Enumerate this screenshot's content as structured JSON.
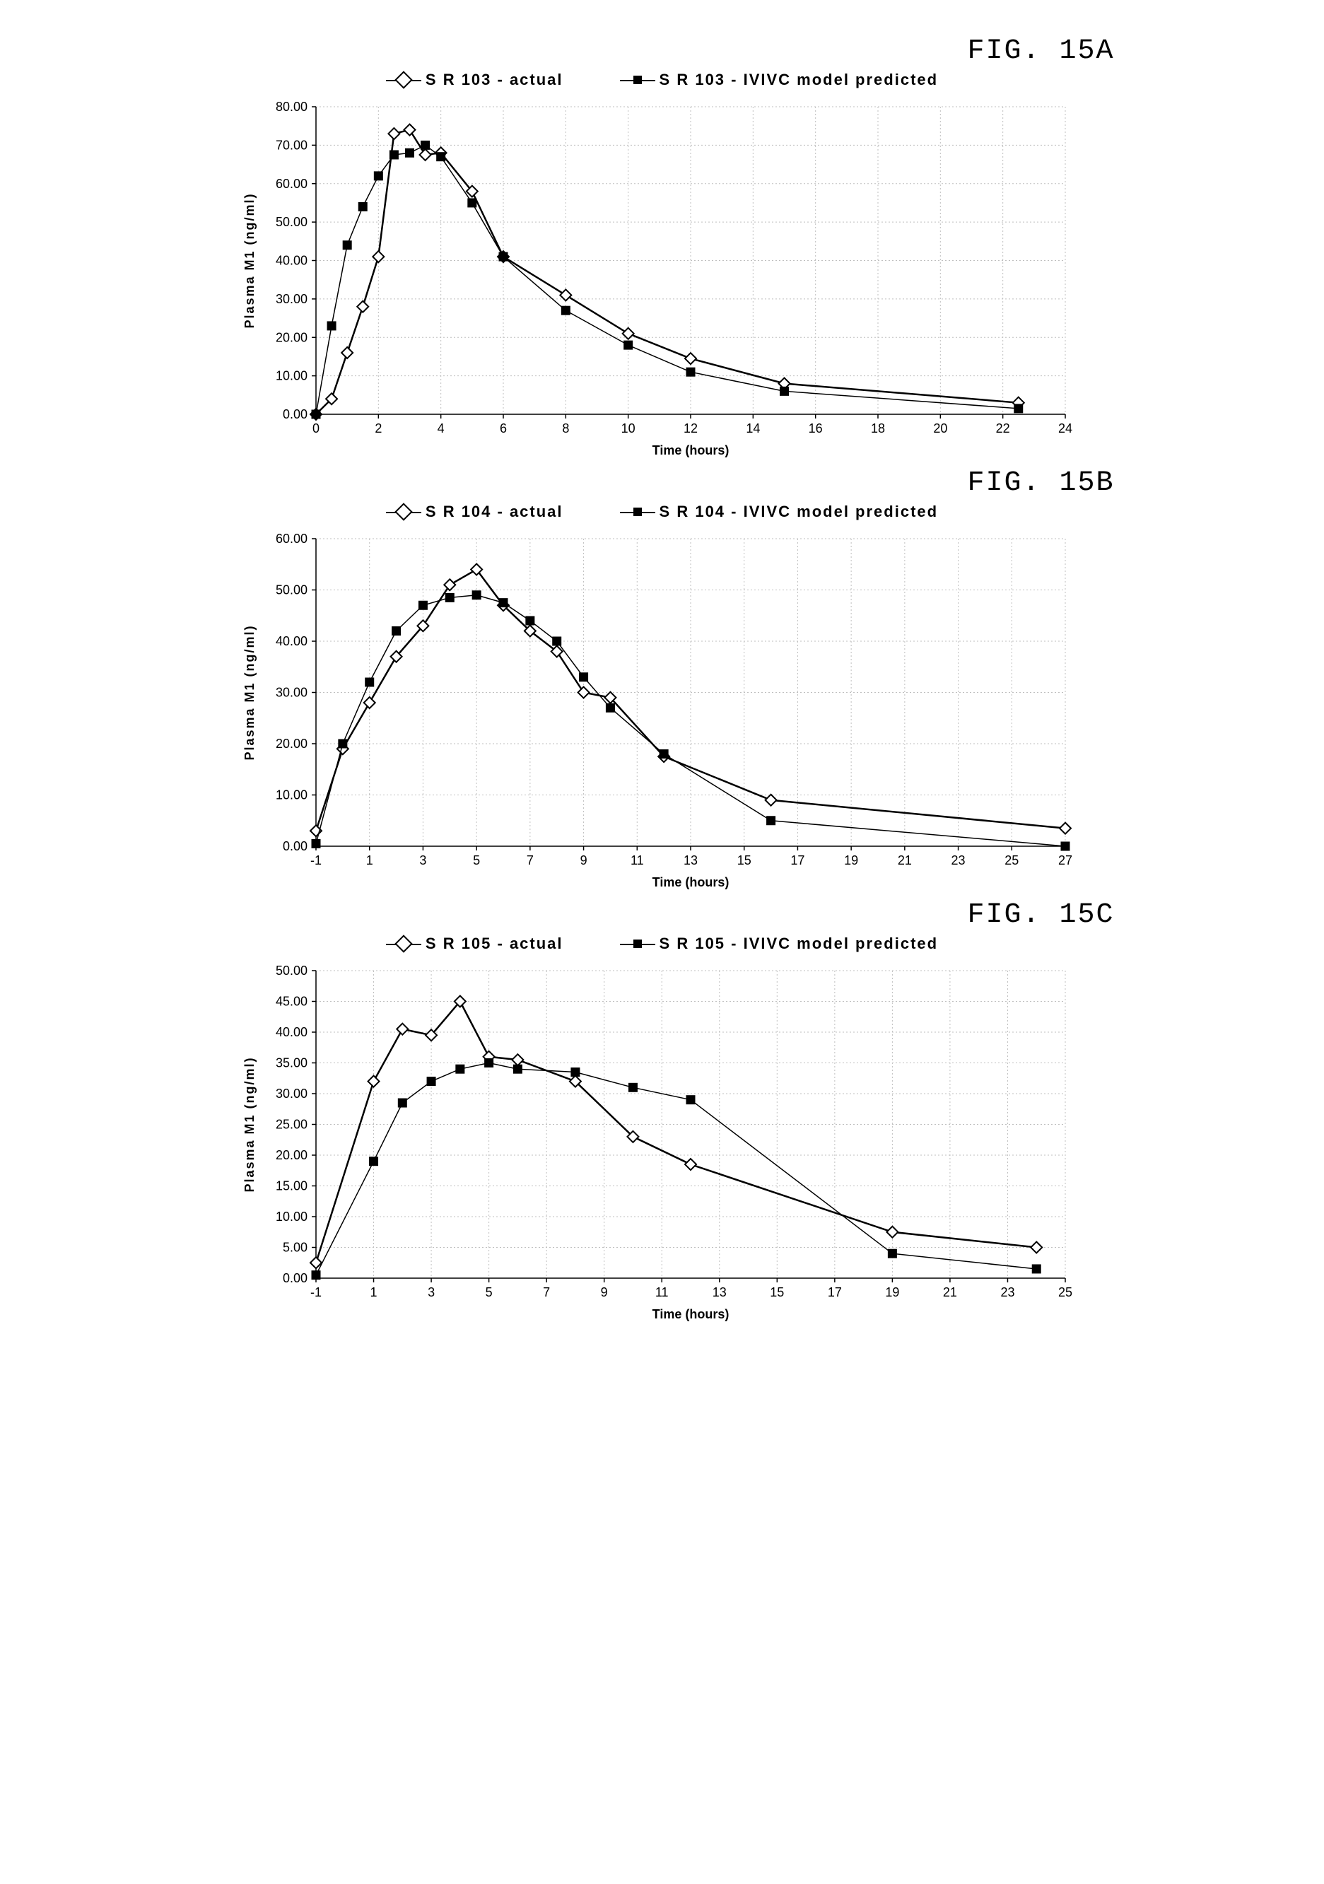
{
  "figures": [
    {
      "title": "FIG. 15A",
      "legend": {
        "actual": "S R 103 - actual",
        "predicted": "S R 103 - IVIVC model predicted"
      },
      "chart": {
        "type": "line",
        "xlabel": "Time (hours)",
        "ylabel": "Plasma M1 (ng/ml)",
        "xlim": [
          0,
          24
        ],
        "ylim": [
          0,
          80
        ],
        "xtick_step": 2,
        "ytick_step": 10,
        "xtick_start": 0,
        "ytick_start": 0,
        "y_decimals": 2,
        "background_color": "#ffffff",
        "grid_color": "#bfbfbf",
        "series": [
          {
            "name": "actual",
            "marker": "diamond",
            "marker_fill": "#ffffff",
            "marker_stroke": "#000000",
            "line_color": "#000000",
            "line_width": 2.5,
            "data": [
              [
                0,
                0
              ],
              [
                0.5,
                4
              ],
              [
                1,
                16
              ],
              [
                1.5,
                28
              ],
              [
                2,
                41
              ],
              [
                2.5,
                73
              ],
              [
                3,
                74
              ],
              [
                3.5,
                67.5
              ],
              [
                4,
                68
              ],
              [
                5,
                58
              ],
              [
                6,
                41
              ],
              [
                8,
                31
              ],
              [
                10,
                21
              ],
              [
                12,
                14.5
              ],
              [
                15,
                8
              ],
              [
                22.5,
                3
              ]
            ]
          },
          {
            "name": "predicted",
            "marker": "square",
            "marker_fill": "#000000",
            "marker_stroke": "#000000",
            "line_color": "#000000",
            "line_width": 1.5,
            "data": [
              [
                0,
                0
              ],
              [
                0.5,
                23
              ],
              [
                1,
                44
              ],
              [
                1.5,
                54
              ],
              [
                2,
                62
              ],
              [
                2.5,
                67.5
              ],
              [
                3,
                68
              ],
              [
                3.5,
                70
              ],
              [
                4,
                67
              ],
              [
                5,
                55
              ],
              [
                6,
                41
              ],
              [
                8,
                27
              ],
              [
                10,
                18
              ],
              [
                12,
                11
              ],
              [
                15,
                6
              ],
              [
                22.5,
                1.5
              ]
            ]
          }
        ]
      }
    },
    {
      "title": "FIG. 15B",
      "legend": {
        "actual": "S R 104 - actual",
        "predicted": "S R 104 - IVIVC model predicted"
      },
      "chart": {
        "type": "line",
        "xlabel": "Time (hours)",
        "ylabel": "Plasma M1 (ng/ml)",
        "xlim": [
          -1,
          27
        ],
        "ylim": [
          0,
          60
        ],
        "xtick_step": 2,
        "ytick_step": 10,
        "xtick_start": -1,
        "ytick_start": 0,
        "y_decimals": 2,
        "background_color": "#ffffff",
        "grid_color": "#bfbfbf",
        "series": [
          {
            "name": "actual",
            "marker": "diamond",
            "marker_fill": "#ffffff",
            "marker_stroke": "#000000",
            "line_color": "#000000",
            "line_width": 2.5,
            "data": [
              [
                -1,
                3
              ],
              [
                0,
                19
              ],
              [
                1,
                28
              ],
              [
                2,
                37
              ],
              [
                3,
                43
              ],
              [
                4,
                51
              ],
              [
                5,
                54
              ],
              [
                6,
                47
              ],
              [
                7,
                42
              ],
              [
                8,
                38
              ],
              [
                9,
                30
              ],
              [
                10,
                29
              ],
              [
                12,
                17.5
              ],
              [
                16,
                9
              ],
              [
                27,
                3.5
              ]
            ]
          },
          {
            "name": "predicted",
            "marker": "square",
            "marker_fill": "#000000",
            "marker_stroke": "#000000",
            "line_color": "#000000",
            "line_width": 1.5,
            "data": [
              [
                -1,
                0.5
              ],
              [
                0,
                20
              ],
              [
                1,
                32
              ],
              [
                2,
                42
              ],
              [
                3,
                47
              ],
              [
                4,
                48.5
              ],
              [
                5,
                49
              ],
              [
                6,
                47.5
              ],
              [
                7,
                44
              ],
              [
                8,
                40
              ],
              [
                9,
                33
              ],
              [
                10,
                27
              ],
              [
                12,
                18
              ],
              [
                16,
                5
              ],
              [
                27,
                0
              ]
            ]
          }
        ]
      }
    },
    {
      "title": "FIG. 15C",
      "legend": {
        "actual": "S R 105 - actual",
        "predicted": "S R 105 - IVIVC model predicted"
      },
      "chart": {
        "type": "line",
        "xlabel": "Time (hours)",
        "ylabel": "Plasma M1 (ng/ml)",
        "xlim": [
          -1,
          25
        ],
        "ylim": [
          0,
          50
        ],
        "xtick_step": 2,
        "ytick_step": 5,
        "xtick_start": -1,
        "ytick_start": 0,
        "y_decimals": 2,
        "background_color": "#ffffff",
        "grid_color": "#bfbfbf",
        "series": [
          {
            "name": "actual",
            "marker": "diamond",
            "marker_fill": "#ffffff",
            "marker_stroke": "#000000",
            "line_color": "#000000",
            "line_width": 2.5,
            "data": [
              [
                -1,
                2.5
              ],
              [
                1,
                32
              ],
              [
                2,
                40.5
              ],
              [
                3,
                39.5
              ],
              [
                4,
                45
              ],
              [
                5,
                36
              ],
              [
                6,
                35.5
              ],
              [
                8,
                32
              ],
              [
                10,
                23
              ],
              [
                12,
                18.5
              ],
              [
                19,
                7.5
              ],
              [
                24,
                5
              ]
            ]
          },
          {
            "name": "predicted",
            "marker": "square",
            "marker_fill": "#000000",
            "marker_stroke": "#000000",
            "line_color": "#000000",
            "line_width": 1.5,
            "data": [
              [
                -1,
                0.5
              ],
              [
                1,
                19
              ],
              [
                2,
                28.5
              ],
              [
                3,
                32
              ],
              [
                4,
                34
              ],
              [
                5,
                35
              ],
              [
                6,
                34
              ],
              [
                8,
                33.5
              ],
              [
                10,
                31
              ],
              [
                12,
                29
              ],
              [
                19,
                4
              ],
              [
                24,
                1.5
              ]
            ]
          }
        ]
      }
    }
  ]
}
